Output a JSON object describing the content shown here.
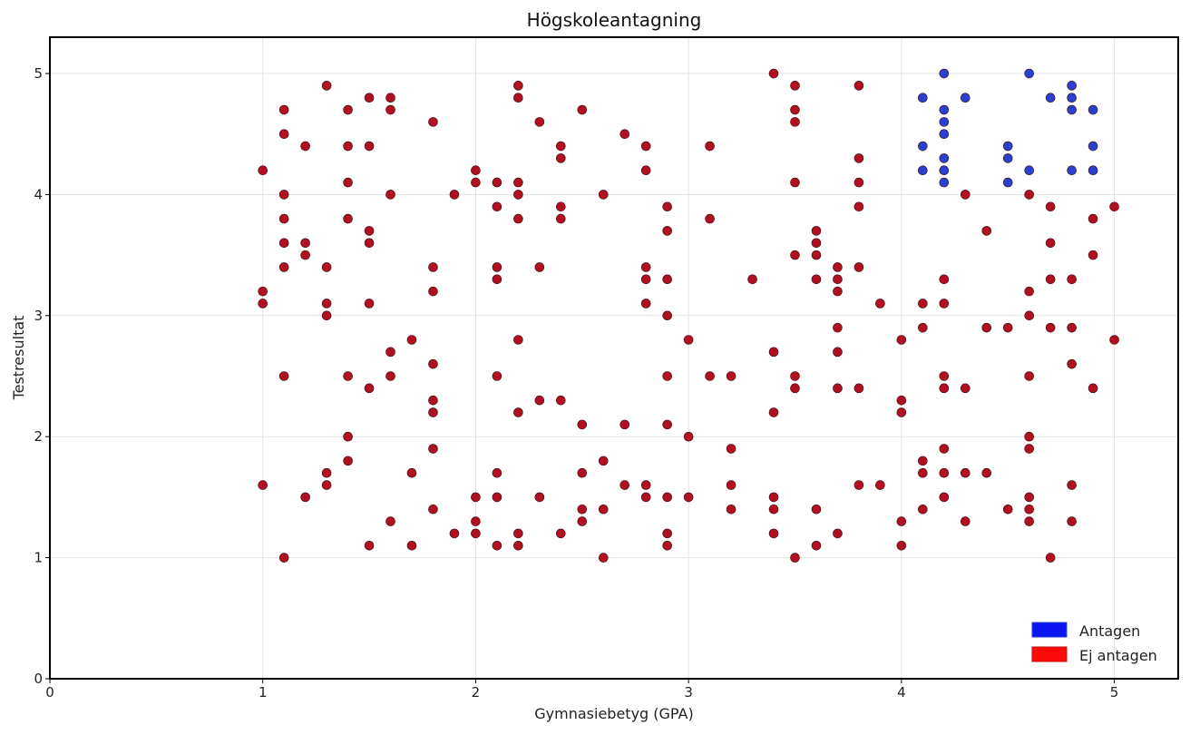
{
  "chart_data": {
    "type": "scatter",
    "title": "Högskoleantagning",
    "xlabel": "Gymnasiebetyg (GPA)",
    "ylabel": "Testresultat",
    "xlim": [
      0,
      5.3
    ],
    "ylim": [
      0,
      5.3
    ],
    "xticks": [
      0,
      1,
      2,
      3,
      4,
      5
    ],
    "yticks": [
      0,
      1,
      2,
      3,
      4,
      5
    ],
    "grid": true,
    "legend_position": "bottom-right",
    "series": [
      {
        "name": "Antagen",
        "color": "#2b3fd1",
        "legend_color": "#0a14f0",
        "points": [
          [
            4.1,
            4.8
          ],
          [
            4.1,
            4.4
          ],
          [
            4.1,
            4.2
          ],
          [
            4.2,
            5.0
          ],
          [
            4.2,
            4.7
          ],
          [
            4.2,
            4.6
          ],
          [
            4.2,
            4.5
          ],
          [
            4.2,
            4.3
          ],
          [
            4.2,
            4.2
          ],
          [
            4.2,
            4.1
          ],
          [
            4.3,
            4.8
          ],
          [
            4.5,
            4.4
          ],
          [
            4.5,
            4.3
          ],
          [
            4.5,
            4.1
          ],
          [
            4.6,
            5.0
          ],
          [
            4.6,
            4.2
          ],
          [
            4.7,
            4.8
          ],
          [
            4.8,
            4.9
          ],
          [
            4.8,
            4.8
          ],
          [
            4.8,
            4.7
          ],
          [
            4.8,
            4.2
          ],
          [
            4.9,
            4.7
          ],
          [
            4.9,
            4.4
          ],
          [
            4.9,
            4.2
          ]
        ]
      },
      {
        "name": "Ej antagen",
        "color": "#b01020",
        "legend_color": "#ff0a0a",
        "points": [
          [
            1.0,
            4.2
          ],
          [
            1.0,
            3.2
          ],
          [
            1.0,
            3.1
          ],
          [
            1.0,
            1.6
          ],
          [
            1.1,
            4.7
          ],
          [
            1.1,
            4.5
          ],
          [
            1.1,
            4.0
          ],
          [
            1.1,
            3.8
          ],
          [
            1.1,
            3.6
          ],
          [
            1.1,
            3.4
          ],
          [
            1.1,
            2.5
          ],
          [
            1.1,
            1.0
          ],
          [
            1.2,
            4.4
          ],
          [
            1.2,
            3.6
          ],
          [
            1.2,
            3.5
          ],
          [
            1.2,
            1.5
          ],
          [
            1.3,
            4.9
          ],
          [
            1.3,
            3.4
          ],
          [
            1.3,
            3.1
          ],
          [
            1.3,
            3.0
          ],
          [
            1.3,
            1.7
          ],
          [
            1.3,
            1.6
          ],
          [
            1.4,
            4.7
          ],
          [
            1.4,
            4.4
          ],
          [
            1.4,
            4.1
          ],
          [
            1.4,
            3.8
          ],
          [
            1.4,
            2.5
          ],
          [
            1.4,
            2.0
          ],
          [
            1.4,
            1.8
          ],
          [
            1.5,
            4.8
          ],
          [
            1.5,
            4.4
          ],
          [
            1.5,
            3.7
          ],
          [
            1.5,
            3.6
          ],
          [
            1.5,
            3.1
          ],
          [
            1.5,
            2.4
          ],
          [
            1.5,
            1.1
          ],
          [
            1.6,
            4.8
          ],
          [
            1.6,
            4.7
          ],
          [
            1.6,
            4.0
          ],
          [
            1.6,
            2.7
          ],
          [
            1.6,
            2.5
          ],
          [
            1.6,
            1.3
          ],
          [
            1.7,
            2.8
          ],
          [
            1.7,
            1.7
          ],
          [
            1.7,
            1.1
          ],
          [
            1.8,
            4.6
          ],
          [
            1.8,
            3.4
          ],
          [
            1.8,
            3.2
          ],
          [
            1.8,
            2.6
          ],
          [
            1.8,
            2.3
          ],
          [
            1.8,
            2.2
          ],
          [
            1.8,
            1.9
          ],
          [
            1.8,
            1.4
          ],
          [
            1.9,
            4.0
          ],
          [
            1.9,
            1.2
          ],
          [
            2.0,
            4.2
          ],
          [
            2.0,
            4.1
          ],
          [
            2.0,
            1.5
          ],
          [
            2.0,
            1.3
          ],
          [
            2.0,
            1.2
          ],
          [
            2.1,
            4.1
          ],
          [
            2.1,
            3.9
          ],
          [
            2.1,
            3.4
          ],
          [
            2.1,
            3.3
          ],
          [
            2.1,
            2.5
          ],
          [
            2.1,
            1.7
          ],
          [
            2.1,
            1.5
          ],
          [
            2.1,
            1.1
          ],
          [
            2.2,
            4.9
          ],
          [
            2.2,
            4.8
          ],
          [
            2.2,
            4.1
          ],
          [
            2.2,
            4.0
          ],
          [
            2.2,
            3.8
          ],
          [
            2.2,
            2.8
          ],
          [
            2.2,
            2.2
          ],
          [
            2.2,
            1.2
          ],
          [
            2.2,
            1.1
          ],
          [
            2.3,
            4.6
          ],
          [
            2.3,
            3.4
          ],
          [
            2.3,
            2.3
          ],
          [
            2.3,
            1.5
          ],
          [
            2.4,
            4.4
          ],
          [
            2.4,
            4.3
          ],
          [
            2.4,
            3.9
          ],
          [
            2.4,
            3.8
          ],
          [
            2.4,
            2.3
          ],
          [
            2.4,
            1.2
          ],
          [
            2.5,
            4.7
          ],
          [
            2.5,
            2.1
          ],
          [
            2.5,
            1.7
          ],
          [
            2.5,
            1.4
          ],
          [
            2.5,
            1.3
          ],
          [
            2.6,
            4.0
          ],
          [
            2.6,
            1.8
          ],
          [
            2.6,
            1.4
          ],
          [
            2.6,
            1.0
          ],
          [
            2.7,
            4.5
          ],
          [
            2.7,
            2.1
          ],
          [
            2.7,
            1.6
          ],
          [
            2.8,
            4.4
          ],
          [
            2.8,
            4.2
          ],
          [
            2.8,
            3.4
          ],
          [
            2.8,
            3.3
          ],
          [
            2.8,
            3.1
          ],
          [
            2.8,
            1.6
          ],
          [
            2.8,
            1.5
          ],
          [
            2.9,
            3.9
          ],
          [
            2.9,
            3.7
          ],
          [
            2.9,
            3.3
          ],
          [
            2.9,
            3.0
          ],
          [
            2.9,
            2.5
          ],
          [
            2.9,
            2.1
          ],
          [
            2.9,
            1.5
          ],
          [
            2.9,
            1.2
          ],
          [
            2.9,
            1.1
          ],
          [
            3.0,
            2.8
          ],
          [
            3.0,
            2.0
          ],
          [
            3.0,
            1.5
          ],
          [
            3.1,
            4.4
          ],
          [
            3.1,
            3.8
          ],
          [
            3.1,
            2.5
          ],
          [
            3.2,
            2.5
          ],
          [
            3.2,
            1.9
          ],
          [
            3.2,
            1.6
          ],
          [
            3.2,
            1.4
          ],
          [
            3.3,
            3.3
          ],
          [
            3.4,
            5.0
          ],
          [
            3.4,
            2.7
          ],
          [
            3.4,
            2.2
          ],
          [
            3.4,
            1.5
          ],
          [
            3.4,
            1.4
          ],
          [
            3.4,
            1.2
          ],
          [
            3.5,
            4.9
          ],
          [
            3.5,
            4.7
          ],
          [
            3.5,
            4.6
          ],
          [
            3.5,
            4.1
          ],
          [
            3.5,
            3.5
          ],
          [
            3.5,
            2.5
          ],
          [
            3.5,
            2.4
          ],
          [
            3.5,
            1.0
          ],
          [
            3.6,
            3.7
          ],
          [
            3.6,
            3.6
          ],
          [
            3.6,
            3.5
          ],
          [
            3.6,
            3.3
          ],
          [
            3.6,
            1.4
          ],
          [
            3.6,
            1.1
          ],
          [
            3.7,
            3.4
          ],
          [
            3.7,
            3.3
          ],
          [
            3.7,
            3.2
          ],
          [
            3.7,
            2.9
          ],
          [
            3.7,
            2.7
          ],
          [
            3.7,
            2.4
          ],
          [
            3.7,
            1.2
          ],
          [
            3.8,
            4.9
          ],
          [
            3.8,
            4.3
          ],
          [
            3.8,
            4.1
          ],
          [
            3.8,
            3.9
          ],
          [
            3.8,
            3.4
          ],
          [
            3.8,
            2.4
          ],
          [
            3.8,
            1.6
          ],
          [
            3.9,
            3.1
          ],
          [
            3.9,
            1.6
          ],
          [
            4.0,
            2.8
          ],
          [
            4.0,
            2.3
          ],
          [
            4.0,
            2.2
          ],
          [
            4.0,
            1.3
          ],
          [
            4.0,
            1.1
          ],
          [
            4.1,
            3.1
          ],
          [
            4.1,
            2.9
          ],
          [
            4.1,
            1.8
          ],
          [
            4.1,
            1.7
          ],
          [
            4.1,
            1.4
          ],
          [
            4.2,
            3.3
          ],
          [
            4.2,
            3.1
          ],
          [
            4.2,
            2.5
          ],
          [
            4.2,
            2.4
          ],
          [
            4.2,
            1.9
          ],
          [
            4.2,
            1.7
          ],
          [
            4.2,
            1.5
          ],
          [
            4.3,
            4.0
          ],
          [
            4.3,
            2.4
          ],
          [
            4.3,
            1.7
          ],
          [
            4.3,
            1.3
          ],
          [
            4.4,
            3.7
          ],
          [
            4.4,
            2.9
          ],
          [
            4.4,
            1.7
          ],
          [
            4.5,
            2.9
          ],
          [
            4.5,
            1.4
          ],
          [
            4.6,
            4.0
          ],
          [
            4.6,
            3.2
          ],
          [
            4.6,
            3.0
          ],
          [
            4.6,
            2.5
          ],
          [
            4.6,
            2.0
          ],
          [
            4.6,
            1.9
          ],
          [
            4.6,
            1.5
          ],
          [
            4.6,
            1.4
          ],
          [
            4.6,
            1.3
          ],
          [
            4.7,
            3.9
          ],
          [
            4.7,
            3.6
          ],
          [
            4.7,
            3.3
          ],
          [
            4.7,
            2.9
          ],
          [
            4.7,
            1.0
          ],
          [
            4.8,
            3.3
          ],
          [
            4.8,
            2.9
          ],
          [
            4.8,
            2.6
          ],
          [
            4.8,
            1.6
          ],
          [
            4.8,
            1.3
          ],
          [
            4.9,
            3.8
          ],
          [
            4.9,
            3.5
          ],
          [
            4.9,
            2.4
          ],
          [
            5.0,
            3.9
          ],
          [
            5.0,
            2.8
          ]
        ]
      }
    ]
  }
}
